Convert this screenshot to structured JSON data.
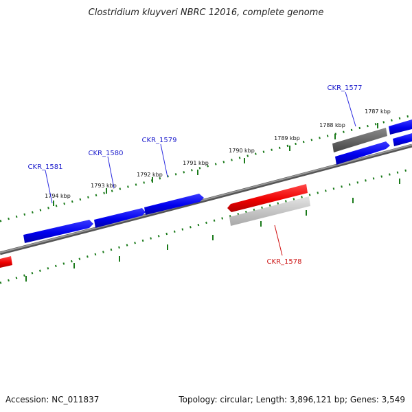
{
  "title": "Clostridium kluyveri NBRC 12016, complete genome",
  "footer": {
    "accession": "Accession: NC_011837",
    "summary": "Topology: circular; Length: 3,896,121 bp; Genes: 3,549"
  },
  "colors": {
    "forward_gene": "#0000ff",
    "reverse_gene": "#ff0000",
    "gray_feature": "#6a6a6a",
    "light_gray_feature": "#c8c8c8",
    "backbone": "#808080",
    "tick": "#1a7a1a"
  },
  "ticks": [
    {
      "label": "1787 kbp"
    },
    {
      "label": "1788 kbp"
    },
    {
      "label": "1789 kbp"
    },
    {
      "label": "1790 kbp"
    },
    {
      "label": "1791 kbp"
    },
    {
      "label": "1792 kbp"
    },
    {
      "label": "1793 kbp"
    },
    {
      "label": "1794 kbp"
    }
  ],
  "genes": [
    {
      "name": "CKR_1577",
      "strand": "forward"
    },
    {
      "name": "CKR_1578",
      "strand": "reverse"
    },
    {
      "name": "CKR_1579",
      "strand": "forward"
    },
    {
      "name": "CKR_1580",
      "strand": "forward"
    },
    {
      "name": "CKR_1581",
      "strand": "forward"
    }
  ]
}
